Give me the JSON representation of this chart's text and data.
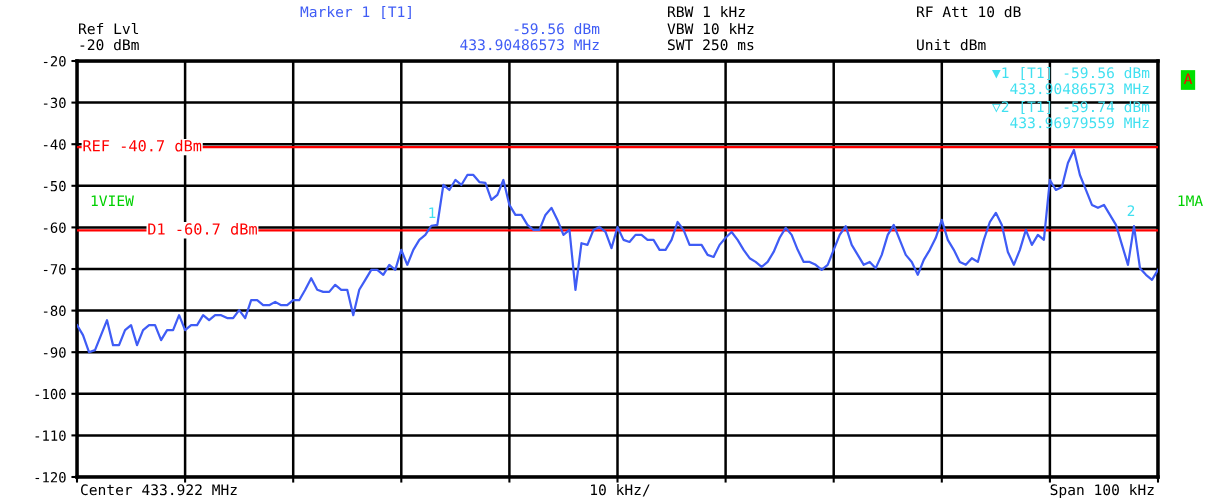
{
  "chart_data": {
    "type": "line",
    "categories": [
      null,
      null,
      null,
      null,
      null,
      null,
      null,
      null,
      null,
      null,
      null,
      null,
      null,
      null,
      null,
      null,
      null,
      null,
      null,
      null,
      null,
      null,
      null,
      null,
      null,
      null,
      null,
      null,
      null,
      null,
      null,
      null,
      null,
      null,
      null,
      null,
      null,
      null,
      null,
      null,
      null,
      null,
      null,
      null,
      null,
      null,
      null,
      null,
      null,
      null,
      null,
      null,
      null,
      null,
      null,
      null,
      null,
      null,
      null,
      null,
      null,
      null,
      null,
      null,
      null,
      null,
      null,
      null,
      null,
      null,
      null,
      null,
      null,
      null,
      null,
      null,
      null,
      null,
      null,
      null,
      null,
      null,
      null,
      null,
      null,
      null,
      null,
      null,
      null,
      null,
      null,
      null,
      null,
      null,
      null,
      null,
      null,
      null,
      null,
      null,
      null,
      null,
      null,
      null,
      null,
      null,
      null,
      null,
      null,
      null,
      null,
      null,
      null,
      null,
      null,
      null,
      null,
      null,
      null,
      null,
      null,
      null,
      null,
      null,
      null,
      null,
      null,
      null,
      null,
      null,
      null,
      null,
      null,
      null,
      null,
      null,
      null,
      null,
      null,
      null,
      null,
      null,
      null,
      null,
      null,
      null,
      null,
      null,
      null,
      null,
      null,
      null,
      null,
      null,
      null,
      null,
      null,
      null,
      null,
      null,
      null,
      null,
      null,
      null,
      null,
      null,
      null,
      null,
      null,
      null,
      null,
      null,
      null,
      null,
      null,
      null,
      null,
      null,
      null,
      null,
      null
    ],
    "series": [
      {
        "color": "#3f5cf5",
        "values": [
          -83.5,
          -85.9,
          -90.0,
          -89.5,
          -85.9,
          -82.3,
          -88.3,
          -88.3,
          -84.7,
          -83.5,
          -88.3,
          -84.7,
          -83.5,
          -83.5,
          -87.1,
          -84.7,
          -84.7,
          -81.1,
          -84.7,
          -83.5,
          -83.5,
          -81.1,
          -82.3,
          -81.1,
          -81.1,
          -81.8,
          -81.8,
          -79.9,
          -81.8,
          -77.5,
          -77.5,
          -78.7,
          -78.7,
          -77.9,
          -78.7,
          -78.7,
          -77.5,
          -77.5,
          -75.0,
          -72.2,
          -75.0,
          -75.5,
          -75.5,
          -73.8,
          -75.0,
          -75.0,
          -81.1,
          -75.0,
          -72.6,
          -70.2,
          -70.2,
          -71.4,
          -69.0,
          -70.2,
          -65.4,
          -69.0,
          -65.4,
          -63.0,
          -61.8,
          -59.6,
          -59.4,
          -49.8,
          -51.0,
          -48.6,
          -49.8,
          -47.4,
          -47.4,
          -49.1,
          -49.3,
          -53.4,
          -52.2,
          -48.6,
          -54.6,
          -57.0,
          -57.0,
          -59.4,
          -60.6,
          -60.6,
          -57.0,
          -55.3,
          -58.2,
          -61.8,
          -60.6,
          -75.0,
          -63.8,
          -64.2,
          -60.6,
          -59.9,
          -61.1,
          -65.0,
          -59.9,
          -63.0,
          -63.5,
          -61.8,
          -61.8,
          -63.0,
          -63.0,
          -65.4,
          -65.4,
          -63.0,
          -58.7,
          -60.6,
          -64.2,
          -64.2,
          -64.2,
          -66.6,
          -67.1,
          -64.2,
          -62.5,
          -61.1,
          -63.0,
          -65.4,
          -67.4,
          -68.3,
          -69.5,
          -68.3,
          -65.9,
          -62.5,
          -60.1,
          -61.8,
          -65.4,
          -68.3,
          -68.3,
          -69.0,
          -70.2,
          -69.0,
          -65.4,
          -61.8,
          -59.7,
          -64.2,
          -66.6,
          -69.0,
          -68.3,
          -69.8,
          -66.6,
          -61.8,
          -59.4,
          -63.0,
          -66.6,
          -68.3,
          -71.4,
          -67.8,
          -65.4,
          -62.5,
          -58.2,
          -63.0,
          -65.4,
          -68.3,
          -69.0,
          -67.4,
          -68.3,
          -63.0,
          -58.7,
          -56.5,
          -59.4,
          -65.9,
          -69.0,
          -65.4,
          -60.6,
          -64.2,
          -61.8,
          -63.0,
          -48.6,
          -51.0,
          -50.3,
          -44.5,
          -41.4,
          -47.4,
          -51.0,
          -54.6,
          -55.3,
          -54.6,
          -57.0,
          -59.4,
          -64.2,
          -69.0,
          -59.7,
          -69.8,
          -71.4,
          -72.6,
          -70.2
        ]
      }
    ],
    "ylim": [
      -120,
      -20
    ],
    "yticks": [
      -120,
      -110,
      -100,
      -90,
      -80,
      -70,
      -60,
      -50,
      -40,
      -30,
      -20
    ],
    "tick_labels": "y",
    "grid": true,
    "ref_lines": [
      {
        "axis": "y",
        "value": -40.7,
        "label": "REF -40.7 dBm",
        "color": "#ff0000"
      },
      {
        "axis": "y",
        "value": -60.7,
        "label": "D1 -60.7 dBm",
        "color": "#ff0000"
      }
    ],
    "annotations": [
      "Ref Lvl",
      "-20 dBm",
      "Marker 1 [T1]",
      "-59.56 dBm",
      "433.90486573 MHz",
      "RBW 1 kHz",
      "VBW 10 kHz",
      "SWT 250 ms",
      "RF Att 10 dB",
      "Unit dBm",
      "▼1 [T1] -59.56 dBm",
      "433.90486573 MHz",
      "▽2 [T1] -59.74 dBm",
      "433.96979559 MHz",
      "A",
      "1VIEW",
      "1MA",
      "Center 433.922 MHz",
      "10 kHz/",
      "Span 100 kHz",
      "1",
      "2"
    ]
  }
}
